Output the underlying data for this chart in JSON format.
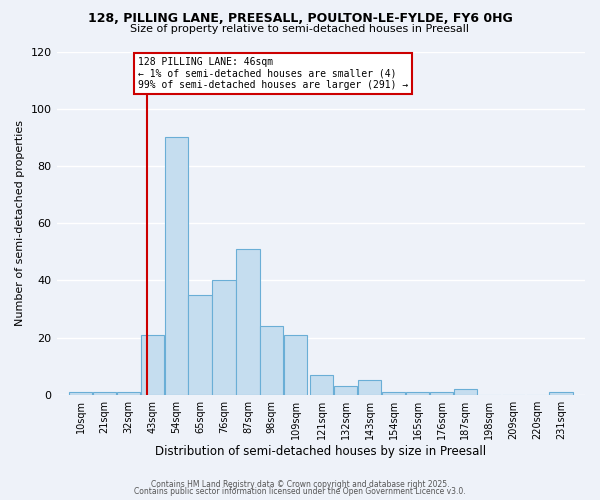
{
  "title1": "128, PILLING LANE, PREESALL, POULTON-LE-FYLDE, FY6 0HG",
  "title2": "Size of property relative to semi-detached houses in Preesall",
  "xlabel": "Distribution of semi-detached houses by size in Preesall",
  "ylabel": "Number of semi-detached properties",
  "bin_labels": [
    "10sqm",
    "21sqm",
    "32sqm",
    "43sqm",
    "54sqm",
    "65sqm",
    "76sqm",
    "87sqm",
    "98sqm",
    "109sqm",
    "121sqm",
    "132sqm",
    "143sqm",
    "154sqm",
    "165sqm",
    "176sqm",
    "187sqm",
    "198sqm",
    "209sqm",
    "220sqm",
    "231sqm"
  ],
  "bin_edges": [
    10,
    21,
    32,
    43,
    54,
    65,
    76,
    87,
    98,
    109,
    121,
    132,
    143,
    154,
    165,
    176,
    187,
    198,
    209,
    220,
    231
  ],
  "bin_counts": [
    1,
    1,
    1,
    21,
    90,
    35,
    40,
    51,
    24,
    21,
    7,
    3,
    5,
    1,
    1,
    1,
    2,
    0,
    0,
    0,
    1
  ],
  "bar_color": "#c5ddef",
  "bar_edge_color": "#6aaed6",
  "vline_x": 46,
  "vline_color": "#cc0000",
  "annotation_box_title": "128 PILLING LANE: 46sqm",
  "annotation_line1": "← 1% of semi-detached houses are smaller (4)",
  "annotation_line2": "99% of semi-detached houses are larger (291) →",
  "annotation_box_color": "#cc0000",
  "ylim": [
    0,
    120
  ],
  "yticks": [
    0,
    20,
    40,
    60,
    80,
    100,
    120
  ],
  "footer1": "Contains HM Land Registry data © Crown copyright and database right 2025.",
  "footer2": "Contains public sector information licensed under the Open Government Licence v3.0.",
  "bg_color": "#eef2f9"
}
